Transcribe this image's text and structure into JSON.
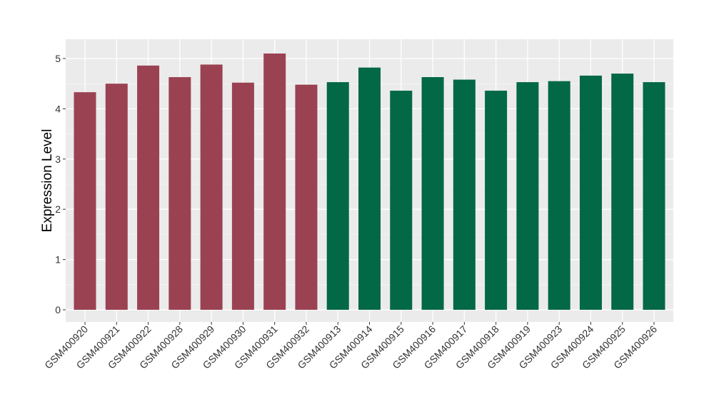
{
  "chart_data": {
    "type": "bar",
    "title": "",
    "xlabel": "",
    "ylabel": "Expression Level",
    "ylim": [
      -0.25,
      5.35
    ],
    "yticks": [
      0,
      1,
      2,
      3,
      4,
      5
    ],
    "grid": true,
    "legend": "none",
    "categories": [
      "GSM400920",
      "GSM400921",
      "GSM400922",
      "GSM400928",
      "GSM400929",
      "GSM400930",
      "GSM400931",
      "GSM400932",
      "GSM400913",
      "GSM400914",
      "GSM400915",
      "GSM400916",
      "GSM400917",
      "GSM400918",
      "GSM400919",
      "GSM400923",
      "GSM400924",
      "GSM400925",
      "GSM400926"
    ],
    "values": [
      4.33,
      4.5,
      4.86,
      4.63,
      4.88,
      4.52,
      5.1,
      4.48,
      4.53,
      4.82,
      4.36,
      4.63,
      4.58,
      4.36,
      4.53,
      4.55,
      4.66,
      4.7,
      4.53
    ],
    "groups": [
      "a",
      "a",
      "a",
      "a",
      "a",
      "a",
      "a",
      "a",
      "b",
      "b",
      "b",
      "b",
      "b",
      "b",
      "b",
      "b",
      "b",
      "b",
      "b"
    ],
    "colors": {
      "a": "#9B4252",
      "b": "#026845"
    },
    "panel_background": "#EBEBEB"
  }
}
